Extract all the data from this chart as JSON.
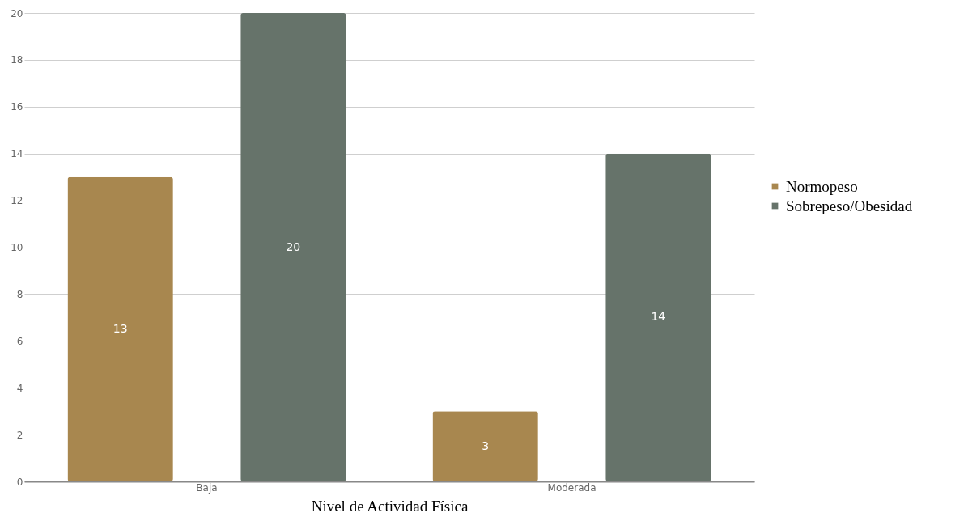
{
  "chart_data": {
    "type": "bar",
    "xlabel": "Nivel de Actividad Física",
    "categories": [
      "Baja",
      "Moderada"
    ],
    "series": [
      {
        "name": "Normopeso",
        "color": "#a8874f",
        "values": [
          13,
          3
        ]
      },
      {
        "name": "Sobrepeso/Obesidad",
        "color": "#66736a",
        "values": [
          20,
          14
        ]
      }
    ],
    "ylim": [
      0,
      20
    ],
    "yticks": [
      0,
      2,
      4,
      6,
      8,
      10,
      12,
      14,
      16,
      18,
      20
    ],
    "grid": "y",
    "legend": "right",
    "data_labels": true
  }
}
